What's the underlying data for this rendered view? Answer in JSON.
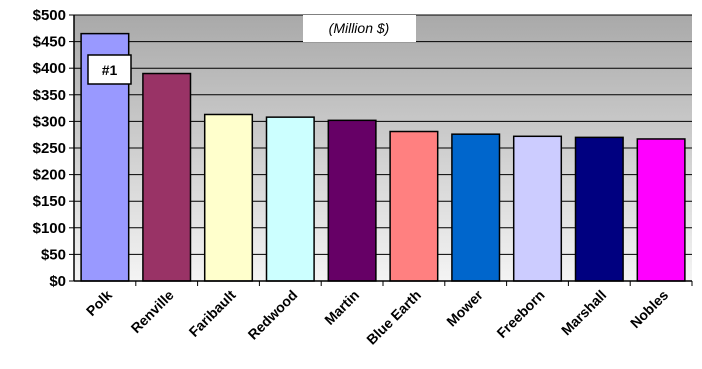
{
  "chart_data": {
    "type": "bar",
    "unit_note": "(Million $)",
    "categories": [
      "Polk",
      "Renville",
      "Faribault",
      "Redwood",
      "Martin",
      "Blue Earth",
      "Mower",
      "Freeborn",
      "Marshall",
      "Nobles"
    ],
    "values": [
      465,
      390,
      313,
      308,
      302,
      281,
      276,
      272,
      270,
      267
    ],
    "colors": [
      "#9999ff",
      "#993366",
      "#ffffcc",
      "#ccffff",
      "#660066",
      "#ff8080",
      "#0066cc",
      "#ccccff",
      "#000080",
      "#ff00ff"
    ],
    "ylim": [
      0,
      500
    ],
    "yticks": [
      "$0",
      "$50",
      "$100",
      "$150",
      "$200",
      "$250",
      "$300",
      "$350",
      "$400",
      "$450",
      "$500"
    ],
    "annotation": "#1",
    "grid": true
  }
}
